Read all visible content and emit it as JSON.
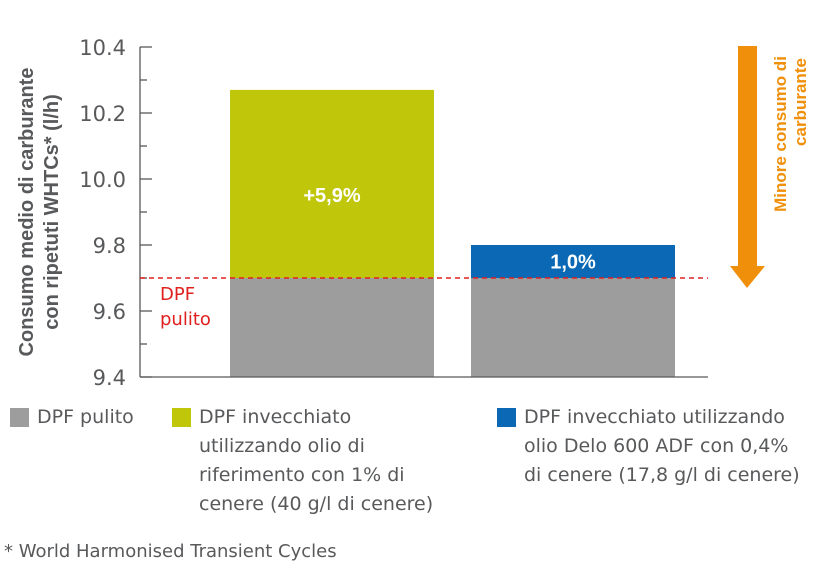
{
  "chart_data": {
    "type": "bar",
    "ylabel_line1": "Consumo medio di carburante",
    "ylabel_line2": "con ripetuti WHTCs* (l/h)",
    "ylim": [
      9.4,
      10.4
    ],
    "yticks": [
      "10.4",
      "10.2",
      "10.0",
      "9.8",
      "9.6",
      "9.4"
    ],
    "ytick_values": [
      10.4,
      10.2,
      10.0,
      9.8,
      9.6,
      9.4
    ],
    "base_value": 9.7,
    "bars": [
      {
        "series": "DPF invecchiato utilizzando olio di riferimento con 1% di cenere (40 g/l di cenere)",
        "base": 9.7,
        "top": 10.27,
        "label": "+5,9%",
        "color": "#c0c70a"
      },
      {
        "series": "DPF invecchiato utilizzando olio Delo 600 ADF con 0,4% di cenere (17,8 g/l di cenere)",
        "base": 9.7,
        "top": 9.8,
        "label": "1,0%",
        "color": "#0a68b4"
      }
    ],
    "base_color": "#9d9d9d",
    "reference_line": {
      "value": 9.7,
      "label_line1": "DPF",
      "label_line2": "pulito",
      "color": "#e0201f"
    },
    "arrow": {
      "label_line1": "Minore consumo di",
      "label_line2": "carburante",
      "color": "#f0900a"
    }
  },
  "legend": [
    {
      "color": "#9d9d9d",
      "lines": [
        "DPF pulito"
      ]
    },
    {
      "color": "#c0c70a",
      "lines": [
        "DPF invecchiato",
        "utilizzando olio di",
        "riferimento con 1% di",
        "cenere (40 g/l di cenere)"
      ]
    },
    {
      "color": "#0a68b4",
      "lines": [
        "DPF invecchiato utilizzando",
        "olio Delo 600 ADF con 0,4%",
        "di cenere (17,8 g/l di cenere)"
      ]
    }
  ],
  "footnote": "* World Harmonised Transient Cycles"
}
